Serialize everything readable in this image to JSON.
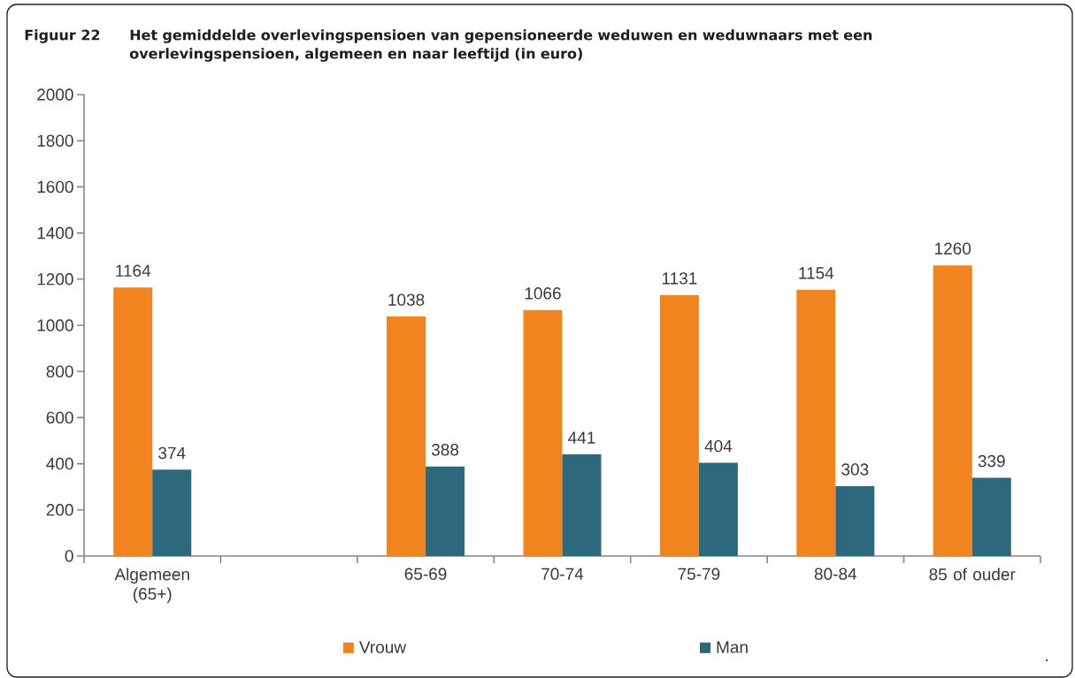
{
  "chart_data": {
    "type": "bar",
    "title": "Figuur 22",
    "subtitle": "Het gemiddelde overlevingspensioen van gepensioneerde weduwen en weduwnaars met een overlevingspensioen, algemeen en naar leeftijd (in euro)",
    "categories": [
      "Algemeen (65+)",
      null,
      "65-69",
      "70-74",
      "75-79",
      "80-84",
      "85 of ouder"
    ],
    "series": [
      {
        "name": "Vrouw",
        "color": "#f2841f",
        "values": [
          1164,
          null,
          1038,
          1066,
          1131,
          1154,
          1260
        ]
      },
      {
        "name": "Man",
        "color": "#2e687c",
        "values": [
          374,
          null,
          388,
          441,
          404,
          303,
          339
        ]
      }
    ],
    "ylim": [
      0,
      2000
    ],
    "yticks": [
      0,
      200,
      400,
      600,
      800,
      1000,
      1200,
      1400,
      1600,
      1800,
      2000
    ],
    "grid": false,
    "data_labels": true,
    "legend": "bottom",
    "annotations": [
      "."
    ]
  }
}
